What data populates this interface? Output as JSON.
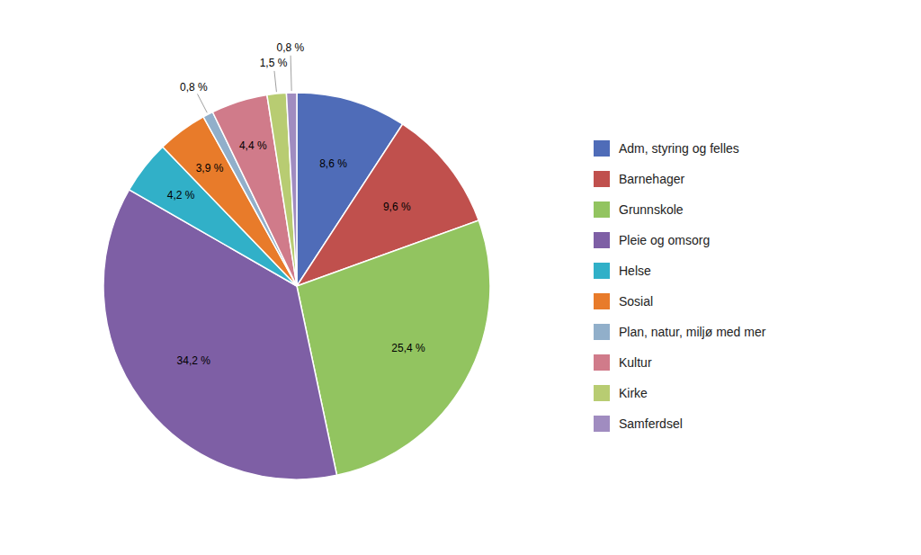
{
  "chart_data": {
    "type": "pie",
    "categories": [
      "Adm, styring og felles",
      "Barnehager",
      "Grunnskole",
      "Pleie og omsorg",
      "Helse",
      "Sosial",
      "Plan, natur, miljø med mer",
      "Kultur",
      "Kirke",
      "Samferdsel"
    ],
    "values": [
      8.6,
      9.6,
      25.4,
      34.2,
      4.2,
      3.9,
      0.8,
      4.4,
      1.5,
      0.8
    ],
    "value_labels": [
      "8,6 %",
      "9,6 %",
      "25,4 %",
      "34,2 %",
      "4,2 %",
      "3,9 %",
      "0,8 %",
      "4,4 %",
      "1,5 %",
      "0,8 %"
    ],
    "colors": [
      "#4F6CB8",
      "#C0504D",
      "#92C460",
      "#7E5FA5",
      "#31B0C8",
      "#E87B2A",
      "#91AFCA",
      "#D07B8A",
      "#B8CC72",
      "#A08CC0"
    ],
    "legend": "right",
    "data_labels": true
  }
}
